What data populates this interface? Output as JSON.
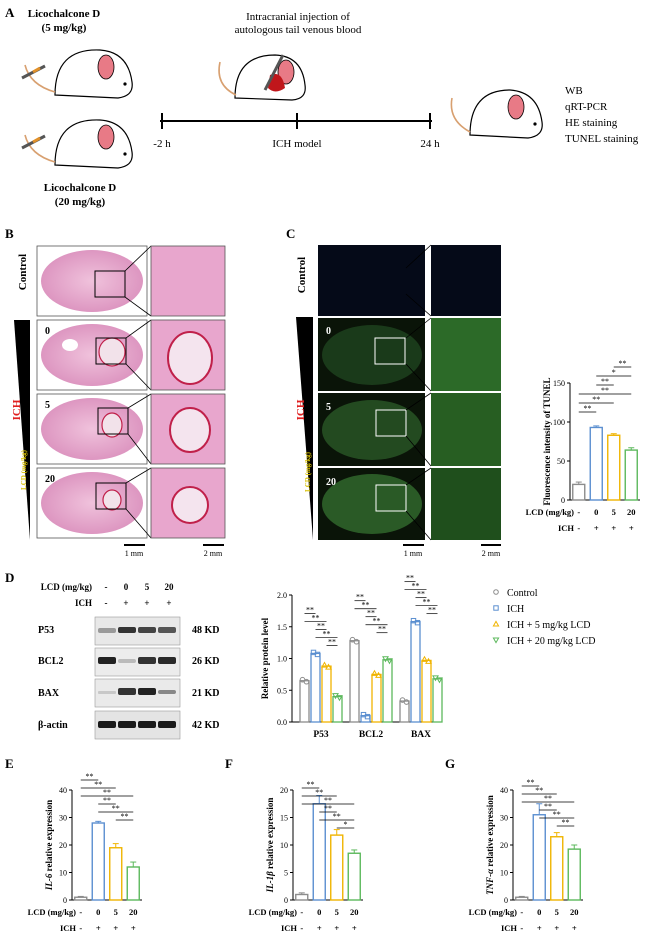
{
  "panel_labels": {
    "a": "A",
    "b": "B",
    "c": "C",
    "d": "D",
    "e": "E",
    "f": "F",
    "g": "G"
  },
  "panel_a": {
    "dose_low": "Licochalcone D",
    "dose_low_unit": "(5 mg/kg)",
    "dose_high": "Licochalcone D",
    "dose_high_unit": "(20 mg/kg)",
    "injection_line1": "Intracranial injection of",
    "injection_line2": "autologous tail venous blood",
    "t_start": "-2 h",
    "t_mid": "ICH model",
    "t_end": "24 h",
    "assays": [
      "WB",
      "qRT-PCR",
      "HE staining",
      "TUNEL staining"
    ]
  },
  "panel_b": {
    "row_control": "Control",
    "row_ich": "ICH",
    "lcd_label": "LCD (mg/kg)",
    "doses": [
      "0",
      "5",
      "20"
    ],
    "scale_left": "1 mm",
    "scale_right": "2 mm"
  },
  "panel_c": {
    "row_control": "Control",
    "row_ich": "ICH",
    "lcd_label": "LCD (mg/kg)",
    "doses": [
      "0",
      "5",
      "20"
    ],
    "scale_left": "1 mm",
    "scale_right": "2 mm"
  },
  "panel_d_blot": {
    "lcd_row": "LCD (mg/kg)",
    "ich_row": "ICH",
    "lcd_values": [
      "-",
      "0",
      "5",
      "20"
    ],
    "ich_values": [
      "-",
      "+",
      "+",
      "+"
    ],
    "proteins": [
      {
        "name": "P53",
        "size": "48 KD"
      },
      {
        "name": "BCL2",
        "size": "26 KD"
      },
      {
        "name": "BAX",
        "size": "21 KD"
      },
      {
        "name": "β-actin",
        "size": "42 KD"
      }
    ]
  },
  "sig": {
    "double": "**",
    "single": "*"
  },
  "colors": {
    "control": "#8c8c8c",
    "ich": "#5b8fd0",
    "lcd5": "#f0b400",
    "lcd20": "#5cb85c"
  },
  "x_rows": {
    "lcd": "LCD (mg/kg)",
    "ich": "ICH",
    "lcd_values": [
      "-",
      "0",
      "5",
      "20"
    ],
    "ich_values": [
      "-",
      "+",
      "+",
      "+"
    ]
  },
  "chart_data": [
    {
      "id": "C",
      "type": "bar",
      "ylabel": "Fluorescence intensity of TUNEL",
      "categories": [
        "-",
        "0",
        "5",
        "20"
      ],
      "values": [
        20,
        93,
        83,
        64
      ],
      "errors": [
        3,
        2,
        2,
        3
      ],
      "ylim": [
        0,
        150
      ],
      "yticks": [
        0,
        50,
        100,
        150
      ]
    },
    {
      "id": "D",
      "type": "bar",
      "ylabel": "Relative protein level",
      "categories": [
        "P53",
        "BCL2",
        "BAX"
      ],
      "series": [
        {
          "name": "Control",
          "values": [
            0.65,
            1.28,
            0.33
          ]
        },
        {
          "name": "ICH",
          "values": [
            1.08,
            0.1,
            1.58
          ]
        },
        {
          "name": "ICH + 5 mg/kg LCD",
          "values": [
            0.88,
            0.75,
            0.97
          ]
        },
        {
          "name": "ICH + 20 mg/kg LCD",
          "values": [
            0.4,
            0.98,
            0.68
          ]
        }
      ],
      "ylim": [
        0,
        2.0
      ],
      "yticks": [
        "0.0",
        "0.5",
        "1.0",
        "1.5",
        "2.0"
      ]
    },
    {
      "id": "E",
      "type": "bar",
      "ylabel_main": "IL-6",
      "ylabel_rest": " relative expression",
      "categories": [
        "-",
        "0",
        "5",
        "20"
      ],
      "values": [
        1,
        28,
        19,
        12
      ],
      "errors": [
        0.3,
        0.6,
        1.5,
        1.8
      ],
      "ylim": [
        0,
        40
      ],
      "yticks": [
        0,
        10,
        20,
        30,
        40
      ]
    },
    {
      "id": "F",
      "type": "bar",
      "ylabel_main": "IL-1β",
      "ylabel_rest": " relative expression",
      "categories": [
        "-",
        "0",
        "5",
        "20"
      ],
      "values": [
        1,
        17.5,
        11.8,
        8.5
      ],
      "errors": [
        0.3,
        1.5,
        1.0,
        0.6
      ],
      "ylim": [
        0,
        20
      ],
      "yticks": [
        0,
        5,
        10,
        15,
        20
      ]
    },
    {
      "id": "G",
      "type": "bar",
      "ylabel_main": "TNF-α",
      "ylabel_rest": " relative expression",
      "categories": [
        "-",
        "0",
        "5",
        "20"
      ],
      "values": [
        1,
        31,
        23,
        18.5
      ],
      "errors": [
        0.3,
        4,
        1.5,
        1.5
      ],
      "ylim": [
        0,
        40
      ],
      "yticks": [
        0,
        10,
        20,
        30,
        40
      ]
    }
  ]
}
